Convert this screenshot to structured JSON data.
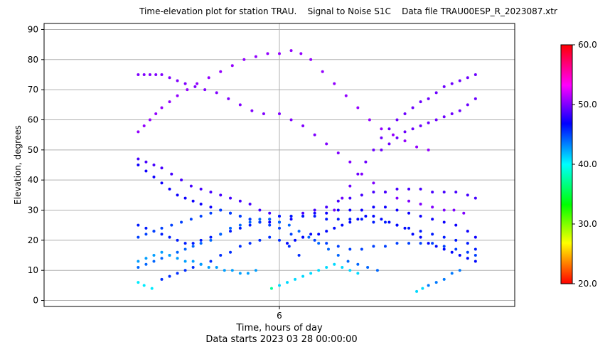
{
  "chart_data": {
    "type": "scatter",
    "title": "Time-elevation plot for station TRAU.    Signal to Noise S1C    Data file TRAU00ESP_R_2023087.xtr",
    "xlabel": "Time, hours of day",
    "xlabel2": "Data starts 2023 03 28 00:00:00",
    "ylabel": "Elevation, degrees",
    "xlim": [
      0,
      12
    ],
    "ylim": [
      -2,
      92
    ],
    "xticks": [
      6
    ],
    "xtick_labels": [
      "6"
    ],
    "yticks": [
      0,
      10,
      20,
      30,
      40,
      50,
      60,
      70,
      80,
      90
    ],
    "grid": true,
    "colorbar": {
      "min": 20,
      "max": 60,
      "ticks": [
        20,
        30,
        40,
        50,
        60
      ],
      "tick_labels": [
        "20.0",
        "30.0",
        "40.0",
        "50.0",
        "60.0"
      ],
      "colormap": "hsv"
    },
    "series": [
      {
        "snr": 50.5,
        "x": [
          2.4,
          2.55,
          2.7,
          2.85,
          3.0,
          3.2,
          3.4,
          3.65,
          3.9,
          4.2,
          4.5,
          4.8,
          5.1,
          5.4,
          5.7,
          6.0,
          6.3,
          6.55,
          6.8,
          7.1,
          7.4,
          7.7,
          8.0,
          8.3,
          8.6,
          8.9,
          9.2,
          9.5,
          9.8
        ],
        "y": [
          56,
          58,
          60,
          62,
          64,
          66,
          68,
          70,
          72,
          74,
          76,
          78,
          80,
          81,
          82,
          82,
          83,
          82,
          80,
          76,
          72,
          68,
          64,
          60,
          57,
          55,
          53,
          51,
          50
        ]
      },
      {
        "snr": 50.0,
        "x": [
          2.4,
          2.55,
          2.7,
          2.85,
          3.0,
          3.2,
          3.4,
          3.6,
          3.85,
          4.1,
          4.4,
          4.7,
          5.0,
          5.3,
          5.6,
          6.0,
          6.3,
          6.6,
          6.9,
          7.2,
          7.5,
          7.8,
          8.1,
          8.4,
          8.7,
          9.0,
          9.3,
          9.6,
          9.9,
          10.2,
          10.45,
          10.7
        ],
        "y": [
          75,
          75,
          75,
          75,
          75,
          74,
          73,
          72,
          71,
          70,
          69,
          67,
          65,
          63,
          62,
          62,
          60,
          58,
          55,
          52,
          49,
          46,
          42,
          39,
          36,
          34,
          33,
          32,
          31,
          30,
          30,
          29
        ]
      },
      {
        "snr": 49.5,
        "x": [
          7.4,
          7.6,
          7.8,
          8.0,
          8.2,
          8.4,
          8.6,
          8.8,
          9.0,
          9.2,
          9.4,
          9.6,
          9.8,
          10.0,
          10.2,
          10.4,
          10.6,
          10.8,
          11.0
        ],
        "y": [
          30,
          34,
          38,
          42,
          46,
          50,
          54,
          57,
          60,
          62,
          64,
          66,
          67,
          69,
          71,
          72,
          73,
          74,
          75
        ]
      },
      {
        "snr": 49.5,
        "x": [
          8.6,
          8.8,
          9.0,
          9.2,
          9.4,
          9.6,
          9.8,
          10.0,
          10.2,
          10.4,
          10.6,
          10.8,
          11.0
        ],
        "y": [
          50,
          52,
          54,
          56,
          57,
          58,
          59,
          60,
          61,
          62,
          63,
          65,
          67
        ]
      },
      {
        "snr": 48.5,
        "x": [
          2.4,
          2.6,
          2.8,
          3.0,
          3.25,
          3.5,
          3.75,
          4.0,
          4.25,
          4.5,
          4.75,
          5.0,
          5.25,
          5.5,
          5.75,
          6.0,
          6.3,
          6.6,
          6.9,
          7.2,
          7.5,
          7.8,
          8.1,
          8.4,
          8.7,
          9.0,
          9.3,
          9.6,
          9.9,
          10.2,
          10.5,
          10.8,
          11.0
        ],
        "y": [
          47,
          46,
          45,
          44,
          42,
          40,
          38,
          37,
          36,
          35,
          34,
          33,
          32,
          30,
          29,
          28,
          28,
          29,
          30,
          31,
          33,
          34,
          35,
          36,
          36,
          37,
          37,
          37,
          36,
          36,
          36,
          35,
          34
        ]
      },
      {
        "snr": 47.0,
        "x": [
          2.4,
          2.6,
          2.8,
          3.0,
          3.2,
          3.4,
          3.6,
          3.8,
          4.0,
          4.25,
          4.5,
          4.75,
          5.0,
          5.25,
          5.5,
          5.75,
          6.0,
          6.3,
          6.6,
          6.9,
          7.2,
          7.5,
          7.8,
          8.1,
          8.4,
          8.7,
          9.0,
          9.3,
          9.6,
          9.9,
          10.2,
          10.5,
          10.8,
          11.0
        ],
        "y": [
          45,
          43,
          41,
          39,
          37,
          35,
          34,
          33,
          32,
          31,
          30,
          29,
          28,
          27,
          26,
          26,
          26,
          27,
          28,
          29,
          29,
          30,
          30,
          30,
          31,
          31,
          30,
          29,
          28,
          27,
          26,
          25,
          23,
          21
        ]
      },
      {
        "snr": 46.0,
        "x": [
          2.4,
          2.6,
          2.8,
          3.0,
          3.2,
          3.4,
          3.6,
          3.8,
          4.0,
          4.25,
          4.5,
          4.75,
          5.0,
          5.25,
          5.5,
          5.75,
          6.0,
          6.3,
          6.6,
          6.9,
          7.2,
          7.5,
          7.8,
          8.1,
          8.4,
          8.7,
          9.0,
          9.3,
          9.6,
          9.9,
          10.2,
          10.5,
          10.8,
          11.0
        ],
        "y": [
          25,
          24,
          23,
          22,
          21,
          20,
          19,
          19,
          20,
          21,
          22,
          23,
          24,
          25,
          26,
          27,
          28,
          28,
          28,
          28,
          27,
          27,
          27,
          27,
          26,
          26,
          25,
          24,
          23,
          22,
          21,
          20,
          19,
          17
        ]
      },
      {
        "snr": 45.0,
        "x": [
          2.4,
          2.6,
          2.8,
          3.0,
          3.25,
          3.5,
          3.75,
          4.0,
          4.25,
          4.5,
          4.75,
          5.0,
          5.25,
          5.5,
          5.75,
          6.0,
          6.3,
          6.6,
          6.9,
          7.2,
          7.5,
          7.8,
          8.1,
          8.4,
          8.7,
          9.0,
          9.3,
          9.6,
          9.9,
          10.2,
          10.5,
          10.8,
          11.0
        ],
        "y": [
          21,
          22,
          23,
          24,
          25,
          26,
          27,
          28,
          29,
          30,
          29,
          28,
          27,
          26,
          25,
          24,
          22,
          21,
          20,
          19,
          18,
          17,
          17,
          18,
          18,
          19,
          19,
          19,
          19,
          18,
          17,
          16,
          15
        ]
      },
      {
        "snr": 44.0,
        "x": [
          2.4,
          2.6,
          2.8,
          3.0,
          3.2,
          3.4,
          3.6,
          3.8,
          4.0,
          4.25,
          4.5,
          4.75,
          5.0,
          5.25,
          5.5,
          5.75,
          6.0,
          6.25,
          6.5,
          6.75,
          7.0,
          7.25,
          7.5,
          7.75,
          8.0,
          8.25,
          8.5
        ],
        "y": [
          11,
          12,
          13,
          14,
          15,
          16,
          17,
          18,
          19,
          20,
          22,
          24,
          25,
          26,
          27,
          27,
          26,
          25,
          23,
          21,
          19,
          17,
          15,
          13,
          12,
          11,
          10
        ]
      },
      {
        "snr": 46.5,
        "x": [
          6.2,
          6.4,
          6.6,
          6.8,
          7.0,
          7.2,
          7.4,
          7.6,
          7.8,
          8.0,
          8.2,
          8.4,
          8.6,
          8.8,
          9.0,
          9.2,
          9.4,
          9.6,
          9.8,
          10.0,
          10.2,
          10.4,
          10.6,
          10.8,
          11.0
        ],
        "y": [
          19,
          20,
          21,
          22,
          22,
          23,
          24,
          25,
          26,
          27,
          28,
          28,
          27,
          26,
          25,
          24,
          22,
          21,
          19,
          18,
          17,
          16,
          15,
          14,
          13
        ]
      },
      {
        "snr": 45.5,
        "x": [
          3.0,
          3.2,
          3.4,
          3.6,
          3.8,
          4.0,
          4.25,
          4.5,
          4.75,
          5.0,
          5.25,
          5.5,
          5.75,
          6.0,
          6.25,
          6.5
        ],
        "y": [
          7,
          8,
          9,
          10,
          11,
          12,
          13,
          15,
          16,
          18,
          19,
          20,
          21,
          20,
          18,
          15
        ]
      },
      {
        "snr": 42.5,
        "x": [
          2.4,
          2.6,
          2.8,
          3.0,
          3.2,
          3.4,
          3.6,
          3.8,
          4.0,
          4.2,
          4.4,
          4.6,
          4.8,
          5.0,
          5.2,
          5.4
        ],
        "y": [
          13,
          14,
          15,
          16,
          15,
          14,
          13,
          13,
          12,
          11,
          11,
          10,
          10,
          9,
          9,
          10
        ]
      },
      {
        "snr": 40.5,
        "x": [
          2.4,
          2.55,
          2.75
        ],
        "y": [
          6,
          5,
          4
        ]
      },
      {
        "snr": 37.5,
        "x": [
          5.8
        ],
        "y": [
          4
        ]
      },
      {
        "snr": 41.0,
        "x": [
          6.0,
          6.2,
          6.4,
          6.6,
          6.8,
          7.0,
          7.2,
          7.4,
          7.6,
          7.8,
          8.0
        ],
        "y": [
          5,
          6,
          7,
          8,
          9,
          10,
          11,
          12,
          11,
          10,
          9
        ]
      },
      {
        "snr": 41.0,
        "x": [
          9.5,
          9.65
        ],
        "y": [
          3,
          4
        ]
      },
      {
        "snr": 43.5,
        "x": [
          9.8,
          10.0,
          10.2,
          10.4,
          10.6
        ],
        "y": [
          5,
          6,
          7,
          9,
          10
        ]
      }
    ]
  }
}
